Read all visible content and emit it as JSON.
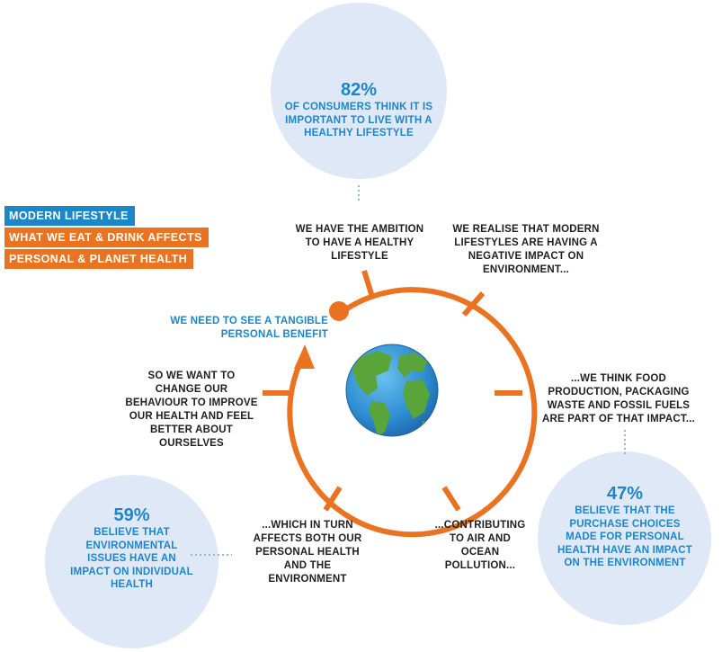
{
  "tags": {
    "modern": "MODERN LIFESTYLE",
    "what_we_eat": "WHAT WE EAT & DRINK AFFECTS",
    "personal_planet": "PERSONAL & PLANET HEALTH"
  },
  "stats": {
    "top": {
      "percent": "82%",
      "text": "OF CONSUMERS THINK IT IS IMPORTANT TO LIVE WITH A HEALTHY LIFESTYLE"
    },
    "left": {
      "percent": "59%",
      "text": "BELIEVE THAT ENVIRONMENTAL ISSUES HAVE AN IMPACT ON INDIVIDUAL HEALTH"
    },
    "right": {
      "percent": "47%",
      "text": "BELIEVE THAT THE PURCHASE CHOICES MADE FOR PERSONAL HEALTH HAVE AN IMPACT ON THE ENVIRONMENT"
    }
  },
  "benefit": "WE NEED TO SEE A TANGIBLE PERSONAL BENEFIT",
  "steps": {
    "ambition": "WE HAVE THE AMBITION TO HAVE A HEALTHY LIFESTYLE",
    "realise": "WE REALISE THAT MODERN LIFESTYLES ARE HAVING A NEGATIVE IMPACT ON ENVIRONMENT...",
    "think": "...WE THINK FOOD PRODUCTION, PACKAGING WASTE AND FOSSIL FUELS ARE PART OF THAT IMPACT...",
    "contributing": "...CONTRIBUTING TO AIR AND OCEAN POLLUTION...",
    "affects": "...WHICH IN TURN AFFECTS BOTH OUR PERSONAL HEALTH AND THE ENVIRONMENT",
    "change": "SO WE WANT TO CHANGE OUR BEHAVIOUR TO IMPROVE OUR HEALTH AND FEEL BETTER ABOUT OURSELVES"
  },
  "colors": {
    "orange": "#ea7322",
    "blue": "#1d86c8",
    "bubble": "#dfe8f6",
    "text": "#1f1f1f"
  },
  "icons": {
    "center": "earth-globe-icon",
    "start": "start-dot-icon",
    "end": "arrow-head-icon"
  }
}
